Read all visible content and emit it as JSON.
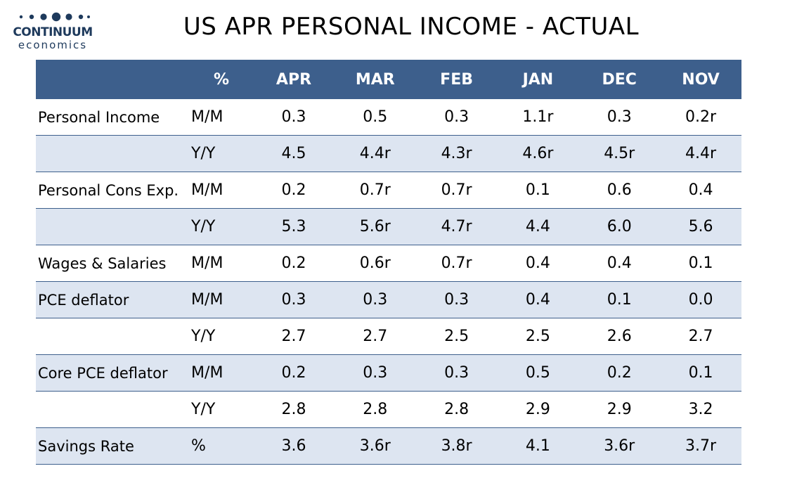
{
  "logo": {
    "name": "CONTINUUM",
    "sub": "economics",
    "color": "#1e3a5c"
  },
  "title": "US APR PERSONAL INCOME - ACTUAL",
  "table": {
    "header_color": "#3d5f8c",
    "shade_color": "#dde5f1",
    "headers": [
      "",
      "%",
      "APR",
      "MAR",
      "FEB",
      "JAN",
      "DEC",
      "NOV"
    ],
    "rows": [
      {
        "label": "Personal Income",
        "unit": "M/M",
        "values": [
          "0.3",
          "0.5",
          "0.3",
          "1.1r",
          "0.3",
          "0.2r"
        ],
        "shaded": false
      },
      {
        "label": "",
        "unit": "Y/Y",
        "values": [
          "4.5",
          "4.4r",
          "4.3r",
          "4.6r",
          "4.5r",
          "4.4r"
        ],
        "shaded": true
      },
      {
        "label": "Personal Cons Exp.",
        "unit": "M/M",
        "values": [
          "0.2",
          "0.7r",
          "0.7r",
          "0.1",
          "0.6",
          "0.4"
        ],
        "shaded": false
      },
      {
        "label": "",
        "unit": "Y/Y",
        "values": [
          "5.3",
          "5.6r",
          "4.7r",
          "4.4",
          "6.0",
          "5.6"
        ],
        "shaded": true
      },
      {
        "label": "Wages & Salaries",
        "unit": "M/M",
        "values": [
          "0.2",
          "0.6r",
          "0.7r",
          "0.4",
          "0.4",
          "0.1"
        ],
        "shaded": false
      },
      {
        "label": "PCE deflator",
        "unit": "M/M",
        "values": [
          "0.3",
          "0.3",
          "0.3",
          "0.4",
          "0.1",
          "0.0"
        ],
        "shaded": true
      },
      {
        "label": "",
        "unit": "Y/Y",
        "values": [
          "2.7",
          "2.7",
          "2.5",
          "2.5",
          "2.6",
          "2.7"
        ],
        "shaded": false
      },
      {
        "label": "Core PCE deflator",
        "unit": "M/M",
        "values": [
          "0.2",
          "0.3",
          "0.3",
          "0.5",
          "0.2",
          "0.1"
        ],
        "shaded": true
      },
      {
        "label": "",
        "unit": "Y/Y",
        "values": [
          "2.8",
          "2.8",
          "2.8",
          "2.9",
          "2.9",
          "3.2"
        ],
        "shaded": false
      },
      {
        "label": "Savings Rate",
        "unit": "%",
        "values": [
          "3.6",
          "3.6r",
          "3.8r",
          "4.1",
          "3.6r",
          "3.7r"
        ],
        "shaded": true
      }
    ]
  }
}
